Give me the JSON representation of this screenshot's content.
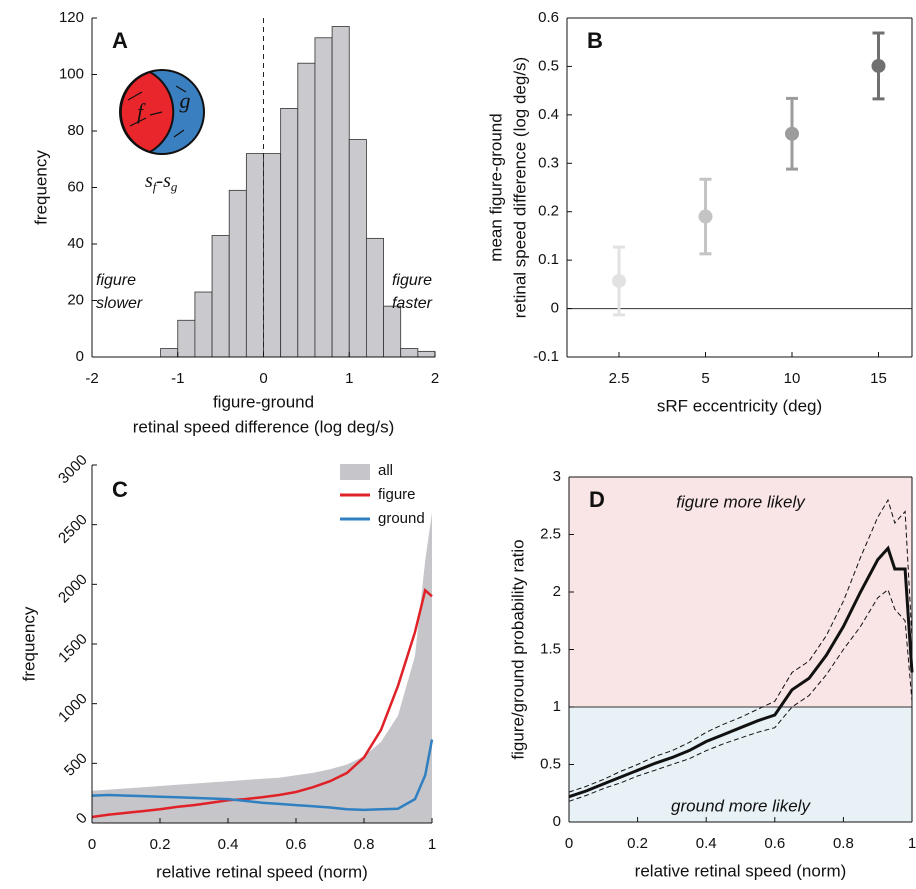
{
  "chart_data": [
    {
      "type": "histogram",
      "panel_label": "A",
      "bins": [
        -1.2,
        -1.0,
        -0.8,
        -0.6,
        -0.4,
        -0.2,
        0,
        0.2,
        0.4,
        0.6,
        0.8,
        1.0,
        1.2,
        1.4,
        1.6,
        1.8,
        2.0
      ],
      "values": [
        3,
        13,
        23,
        43,
        59,
        72,
        72,
        88,
        104,
        113,
        117,
        77,
        42,
        18,
        3,
        2
      ],
      "color": "#c9c9ce",
      "edge_color": "#333333",
      "xlim": [
        -2,
        2
      ],
      "xticks": [
        -2,
        -1,
        0,
        1,
        2
      ],
      "ylim": [
        0,
        120
      ],
      "yticks": [
        0,
        20,
        40,
        60,
        80,
        100,
        120
      ],
      "reference_x": 0,
      "x_label": [
        "figure-ground",
        "retinal speed difference (log deg/s)"
      ],
      "y_label": "frequency",
      "annotations": [
        [
          "figure",
          "slower"
        ],
        [
          "figure",
          "faster"
        ]
      ],
      "inset_labels": [
        "f",
        "g"
      ],
      "inset_formula": [
        "s",
        "f",
        "-s",
        "g"
      ],
      "inset_colors": [
        "#e8262b",
        "#3a7fc0"
      ]
    },
    {
      "type": "errorbar",
      "panel_label": "B",
      "categories": [
        "2.5",
        "5",
        "10",
        "15"
      ],
      "values": [
        0.057,
        0.19,
        0.361,
        0.501
      ],
      "errors": [
        0.07,
        0.077,
        0.073,
        0.068
      ],
      "colors": [
        "#e2e2e2",
        "#c4c4c4",
        "#9c9c9c",
        "#707070"
      ],
      "ylim": [
        -0.1,
        0.6
      ],
      "yticks": [
        -0.1,
        0,
        0.1,
        0.2,
        0.3,
        0.4,
        0.5,
        0.6
      ],
      "reference_y": 0,
      "x_label": "sRF eccentricity (deg)",
      "y_label": [
        "mean figure-ground",
        "retinal speed difference (log deg/s)"
      ]
    },
    {
      "type": "line",
      "panel_label": "C",
      "x": [
        0,
        0.05,
        0.1,
        0.15,
        0.2,
        0.25,
        0.3,
        0.35,
        0.4,
        0.45,
        0.5,
        0.55,
        0.6,
        0.65,
        0.7,
        0.75,
        0.8,
        0.85,
        0.9,
        0.95,
        0.98,
        1
      ],
      "series": [
        {
          "name": "all",
          "color": "#c6c6ca",
          "style": "area",
          "values": [
            270,
            280,
            290,
            300,
            310,
            320,
            330,
            340,
            350,
            360,
            370,
            380,
            400,
            420,
            450,
            490,
            560,
            680,
            900,
            1400,
            2200,
            2600
          ]
        },
        {
          "name": "figure",
          "color": "#e02128",
          "style": "line",
          "values": [
            50,
            70,
            85,
            100,
            115,
            135,
            150,
            170,
            190,
            200,
            215,
            235,
            260,
            300,
            350,
            420,
            550,
            780,
            1150,
            1600,
            1950,
            1900
          ]
        },
        {
          "name": "ground",
          "color": "#2f7fc1",
          "style": "line",
          "values": [
            230,
            235,
            230,
            225,
            220,
            215,
            210,
            205,
            200,
            185,
            170,
            160,
            150,
            140,
            130,
            115,
            110,
            115,
            120,
            200,
            400,
            700
          ]
        }
      ],
      "xlim": [
        0,
        1
      ],
      "xticks": [
        0,
        0.2,
        0.4,
        0.6,
        0.8,
        1
      ],
      "ylim": [
        0,
        3000
      ],
      "yticks": [
        0,
        500,
        1000,
        1500,
        2000,
        2500,
        3000
      ],
      "legend": "upper right",
      "x_label": "relative retinal speed (norm)",
      "y_label": "frequency"
    },
    {
      "type": "line",
      "panel_label": "D",
      "x": [
        0,
        0.05,
        0.1,
        0.15,
        0.2,
        0.25,
        0.3,
        0.35,
        0.4,
        0.45,
        0.5,
        0.55,
        0.6,
        0.65,
        0.7,
        0.75,
        0.8,
        0.85,
        0.9,
        0.93,
        0.95,
        0.98,
        1
      ],
      "series": [
        {
          "color": "#111111",
          "style": "line",
          "values": [
            0.22,
            0.27,
            0.33,
            0.39,
            0.45,
            0.51,
            0.56,
            0.62,
            0.7,
            0.76,
            0.82,
            0.88,
            0.93,
            1.15,
            1.25,
            1.45,
            1.7,
            2.0,
            2.28,
            2.38,
            2.2,
            2.2,
            1.3
          ],
          "upper": [
            0.26,
            0.31,
            0.37,
            0.44,
            0.5,
            0.57,
            0.62,
            0.69,
            0.78,
            0.85,
            0.91,
            0.98,
            1.05,
            1.3,
            1.4,
            1.62,
            1.92,
            2.3,
            2.65,
            2.8,
            2.6,
            2.7,
            1.6
          ],
          "lower": [
            0.18,
            0.23,
            0.29,
            0.34,
            0.4,
            0.45,
            0.5,
            0.55,
            0.62,
            0.68,
            0.73,
            0.78,
            0.82,
            1.0,
            1.1,
            1.28,
            1.5,
            1.7,
            1.95,
            2.02,
            1.85,
            1.75,
            1.05
          ]
        }
      ],
      "xlim": [
        0,
        1
      ],
      "xticks": [
        0,
        0.2,
        0.4,
        0.6,
        0.8,
        1
      ],
      "ylim": [
        0,
        3
      ],
      "yticks": [
        0,
        0.5,
        1,
        1.5,
        2,
        2.5,
        3
      ],
      "reference_y": 1,
      "shade_above": "#f9e4e6",
      "shade_below": "#e8f2f6",
      "annotations": [
        "figure more likely",
        "ground more likely"
      ],
      "x_label": "relative retinal speed (norm)",
      "y_label": "figure/ground probability ratio"
    }
  ]
}
